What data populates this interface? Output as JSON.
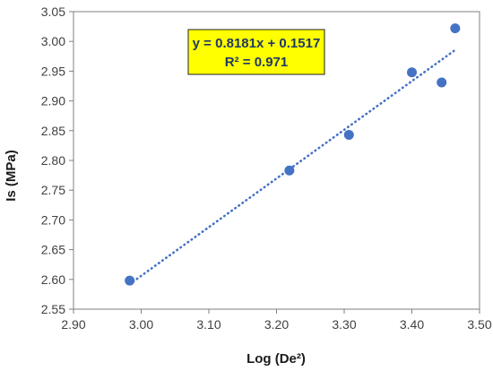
{
  "chart_data": {
    "type": "scatter",
    "xlabel": "Log (De²)",
    "ylabel": "Is (MPa)",
    "xlim": [
      2.9,
      3.5
    ],
    "ylim": [
      2.55,
      3.05
    ],
    "x_ticks": [
      "2.90",
      "3.00",
      "3.10",
      "3.20",
      "3.30",
      "3.40",
      "3.50"
    ],
    "y_ticks": [
      "2.55",
      "2.60",
      "2.65",
      "2.70",
      "2.75",
      "2.80",
      "2.85",
      "2.90",
      "2.95",
      "3.00",
      "3.05"
    ],
    "grid": false,
    "series": [
      {
        "x": [
          2.983,
          3.219,
          3.307,
          3.4,
          3.444,
          3.464
        ],
        "y": [
          2.598,
          2.783,
          2.843,
          2.948,
          2.931,
          3.022
        ],
        "color": "#4472c4"
      }
    ],
    "trendline": {
      "type": "linear",
      "slope": 0.8181,
      "intercept": 0.1517,
      "x_range": [
        2.983,
        3.464
      ],
      "style": "dotted",
      "color": "#4472c4"
    },
    "annotation": {
      "equation": "y = 0.8181x + 0.1517",
      "r_squared": "R² = 0.971",
      "background": "#ffff00"
    }
  }
}
